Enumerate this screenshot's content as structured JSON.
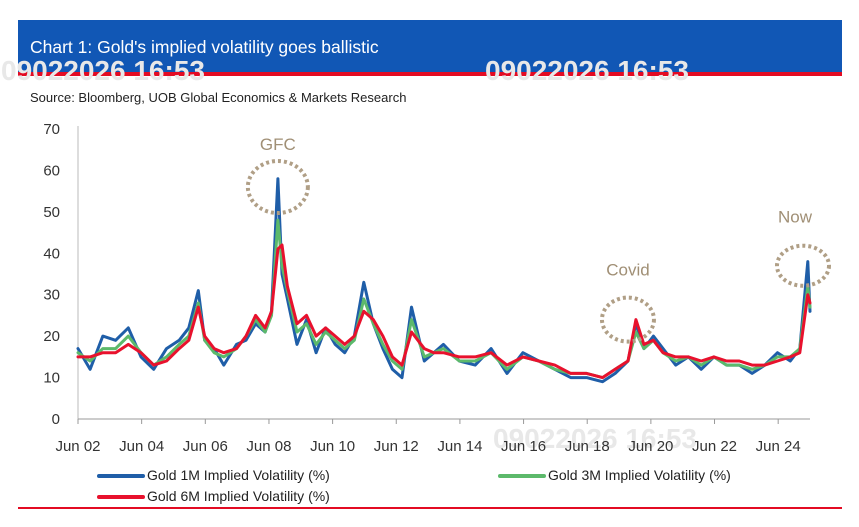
{
  "header": {
    "title": "Chart 1: Gold's implied volatility goes ballistic",
    "source": "Source: Bloomberg, UOB Global Economics & Markets Research"
  },
  "colors": {
    "header_bg": "#1157b5",
    "accent_red": "#e30b23",
    "series_1m": "#1f5ea8",
    "series_3m": "#5cb96b",
    "series_6m": "#e8112d",
    "annotation": "#b09f86"
  },
  "chart_data": {
    "type": "line",
    "title": "Chart 1: Gold's implied volatility goes ballistic",
    "xlabel": "",
    "ylabel": "",
    "ylim": [
      0,
      70
    ],
    "xlim": [
      2002.42,
      2025.42
    ],
    "yticks": [
      "0",
      "10",
      "20",
      "30",
      "40",
      "50",
      "60",
      "70"
    ],
    "xticks": [
      {
        "label": "Jun 02",
        "x": 2002.42
      },
      {
        "label": "Jun 04",
        "x": 2004.42
      },
      {
        "label": "Jun 06",
        "x": 2006.42
      },
      {
        "label": "Jun 08",
        "x": 2008.42
      },
      {
        "label": "Jun 10",
        "x": 2010.42
      },
      {
        "label": "Jun 12",
        "x": 2012.42
      },
      {
        "label": "Jun 14",
        "x": 2014.42
      },
      {
        "label": "Jun 16",
        "x": 2016.42
      },
      {
        "label": "Jun 18",
        "x": 2018.42
      },
      {
        "label": "Jun 20",
        "x": 2020.42
      },
      {
        "label": "Jun 22",
        "x": 2022.42
      },
      {
        "label": "Jun 24",
        "x": 2024.42
      }
    ],
    "x": [
      2002.42,
      2002.8,
      2003.2,
      2003.6,
      2004.0,
      2004.4,
      2004.8,
      2005.2,
      2005.6,
      2005.9,
      2006.2,
      2006.4,
      2006.7,
      2007.0,
      2007.4,
      2007.7,
      2008.0,
      2008.3,
      2008.5,
      2008.7,
      2008.83,
      2009.0,
      2009.3,
      2009.6,
      2009.9,
      2010.2,
      2010.5,
      2010.8,
      2011.1,
      2011.4,
      2011.7,
      2012.0,
      2012.3,
      2012.6,
      2012.9,
      2013.3,
      2013.6,
      2013.9,
      2014.4,
      2014.9,
      2015.4,
      2015.9,
      2016.4,
      2016.9,
      2017.4,
      2017.9,
      2018.4,
      2018.9,
      2019.3,
      2019.7,
      2019.95,
      2020.2,
      2020.5,
      2020.8,
      2021.2,
      2021.6,
      2022.0,
      2022.4,
      2022.8,
      2023.2,
      2023.6,
      2024.0,
      2024.4,
      2024.8,
      2025.1,
      2025.35,
      2025.42
    ],
    "series": [
      {
        "name": "Gold 1M Implied Volatility (%)",
        "color": "#1f5ea8",
        "values": [
          17,
          12,
          20,
          19,
          22,
          15,
          12,
          17,
          19,
          22,
          31,
          19,
          17,
          13,
          18,
          19,
          23,
          21,
          26,
          58,
          35,
          29,
          18,
          24,
          16,
          22,
          18,
          16,
          20,
          33,
          23,
          17,
          12,
          10,
          27,
          14,
          16,
          18,
          14,
          13,
          17,
          11,
          16,
          14,
          12,
          10,
          10,
          9,
          11,
          14,
          23,
          17,
          20,
          17,
          13,
          15,
          12,
          15,
          13,
          13,
          11,
          13,
          16,
          14,
          17,
          38,
          26
        ]
      },
      {
        "name": "Gold 3M Implied Volatility (%)",
        "color": "#5cb96b",
        "values": [
          16,
          14,
          17,
          17,
          20,
          16,
          13,
          15,
          18,
          20,
          28,
          19,
          16,
          15,
          17,
          20,
          24,
          21,
          25,
          48,
          37,
          31,
          21,
          23,
          18,
          21,
          19,
          17,
          19,
          29,
          23,
          18,
          14,
          12,
          24,
          15,
          16,
          17,
          14,
          14,
          16,
          12,
          15,
          14,
          12,
          11,
          11,
          10,
          12,
          14,
          21,
          17,
          19,
          16,
          14,
          15,
          13,
          15,
          13,
          13,
          12,
          13,
          15,
          15,
          17,
          32,
          27
        ]
      },
      {
        "name": "Gold 6M Implied Volatility (%)",
        "color": "#e8112d",
        "values": [
          15,
          15,
          16,
          16,
          18,
          16,
          13,
          14,
          17,
          19,
          27,
          20,
          17,
          16,
          17,
          20,
          25,
          22,
          26,
          41,
          42,
          32,
          23,
          25,
          20,
          22,
          20,
          18,
          20,
          26,
          24,
          20,
          15,
          13,
          21,
          17,
          16,
          16,
          15,
          15,
          16,
          13,
          15,
          14,
          13,
          11,
          11,
          10,
          12,
          14,
          24,
          18,
          19,
          16,
          15,
          15,
          14,
          15,
          14,
          14,
          13,
          13,
          14,
          15,
          16,
          30,
          28
        ]
      }
    ],
    "annotations": [
      {
        "label": "GFC",
        "x": 2008.7,
        "y": 56
      },
      {
        "label": "Covid",
        "x": 2019.7,
        "y": 24
      },
      {
        "label": "Now",
        "x": 2025.2,
        "y": 37
      }
    ],
    "watermark": "09022026 16:53",
    "legend": [
      "Gold 1M Implied Volatility (%)",
      "Gold 3M Implied Volatility (%)",
      "Gold 6M Implied Volatility (%)"
    ]
  }
}
